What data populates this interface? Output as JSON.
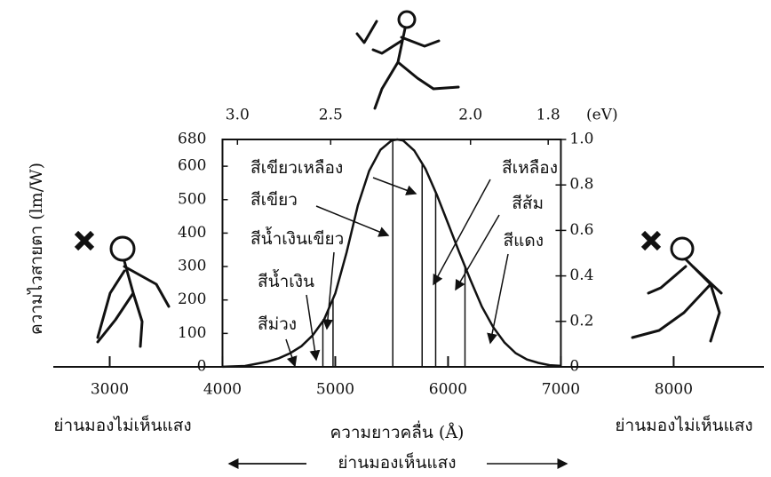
{
  "chart_data": {
    "type": "line",
    "x_label": "ความยาวคลื่น (Å)",
    "y_label": "ความไวสายตา (lm/W)",
    "x2_label": "(eV)",
    "left_region_label": "ย่านมองไม่เห็นแสง",
    "right_region_label": "ย่านมองไม่เห็นแสง",
    "visible_label": "ย่านมองเห็นแสง",
    "color": "#111111",
    "x": [
      4000,
      4200,
      4400,
      4500,
      4600,
      4700,
      4800,
      4900,
      5000,
      5100,
      5200,
      5300,
      5400,
      5500,
      5550,
      5600,
      5700,
      5800,
      5900,
      6000,
      6100,
      6200,
      6300,
      6400,
      6500,
      6600,
      6700,
      6800,
      6900,
      7000
    ],
    "values": [
      0.3,
      2.7,
      15.6,
      25.8,
      40.8,
      61.9,
      94.5,
      141,
      220,
      342,
      483,
      586,
      649,
      677,
      680,
      677,
      647,
      592,
      515,
      429,
      342,
      259,
      180,
      119,
      73,
      41,
      22,
      12,
      5,
      3
    ],
    "color_boundaries": [
      4890,
      4980,
      5510,
      5770,
      5890,
      6150
    ],
    "annotations": [
      "สีม่วง",
      "สีน้ำเงิน",
      "สีน้ำเงินเขียว",
      "สีเขียว",
      "สีเขียวเหลือง",
      "สีเหลือง",
      "สีส้ม",
      "สีแดง"
    ],
    "xlim": [
      2500,
      8800
    ],
    "xticks": [
      3000,
      4000,
      5000,
      6000,
      7000,
      8000
    ],
    "ylim": [
      0,
      680
    ],
    "yticks": [
      0,
      100,
      200,
      300,
      400,
      500,
      600,
      680
    ],
    "y2lim": [
      0,
      1
    ],
    "y2ticks": [
      0,
      0.2,
      0.4,
      0.6,
      0.8,
      {
        "value": 1,
        "label": "1.0"
      }
    ],
    "x2ticks": [
      {
        "value": 3,
        "label": "3.0"
      },
      2.5,
      {
        "value": 2,
        "label": "2.0"
      },
      1.8
    ]
  }
}
